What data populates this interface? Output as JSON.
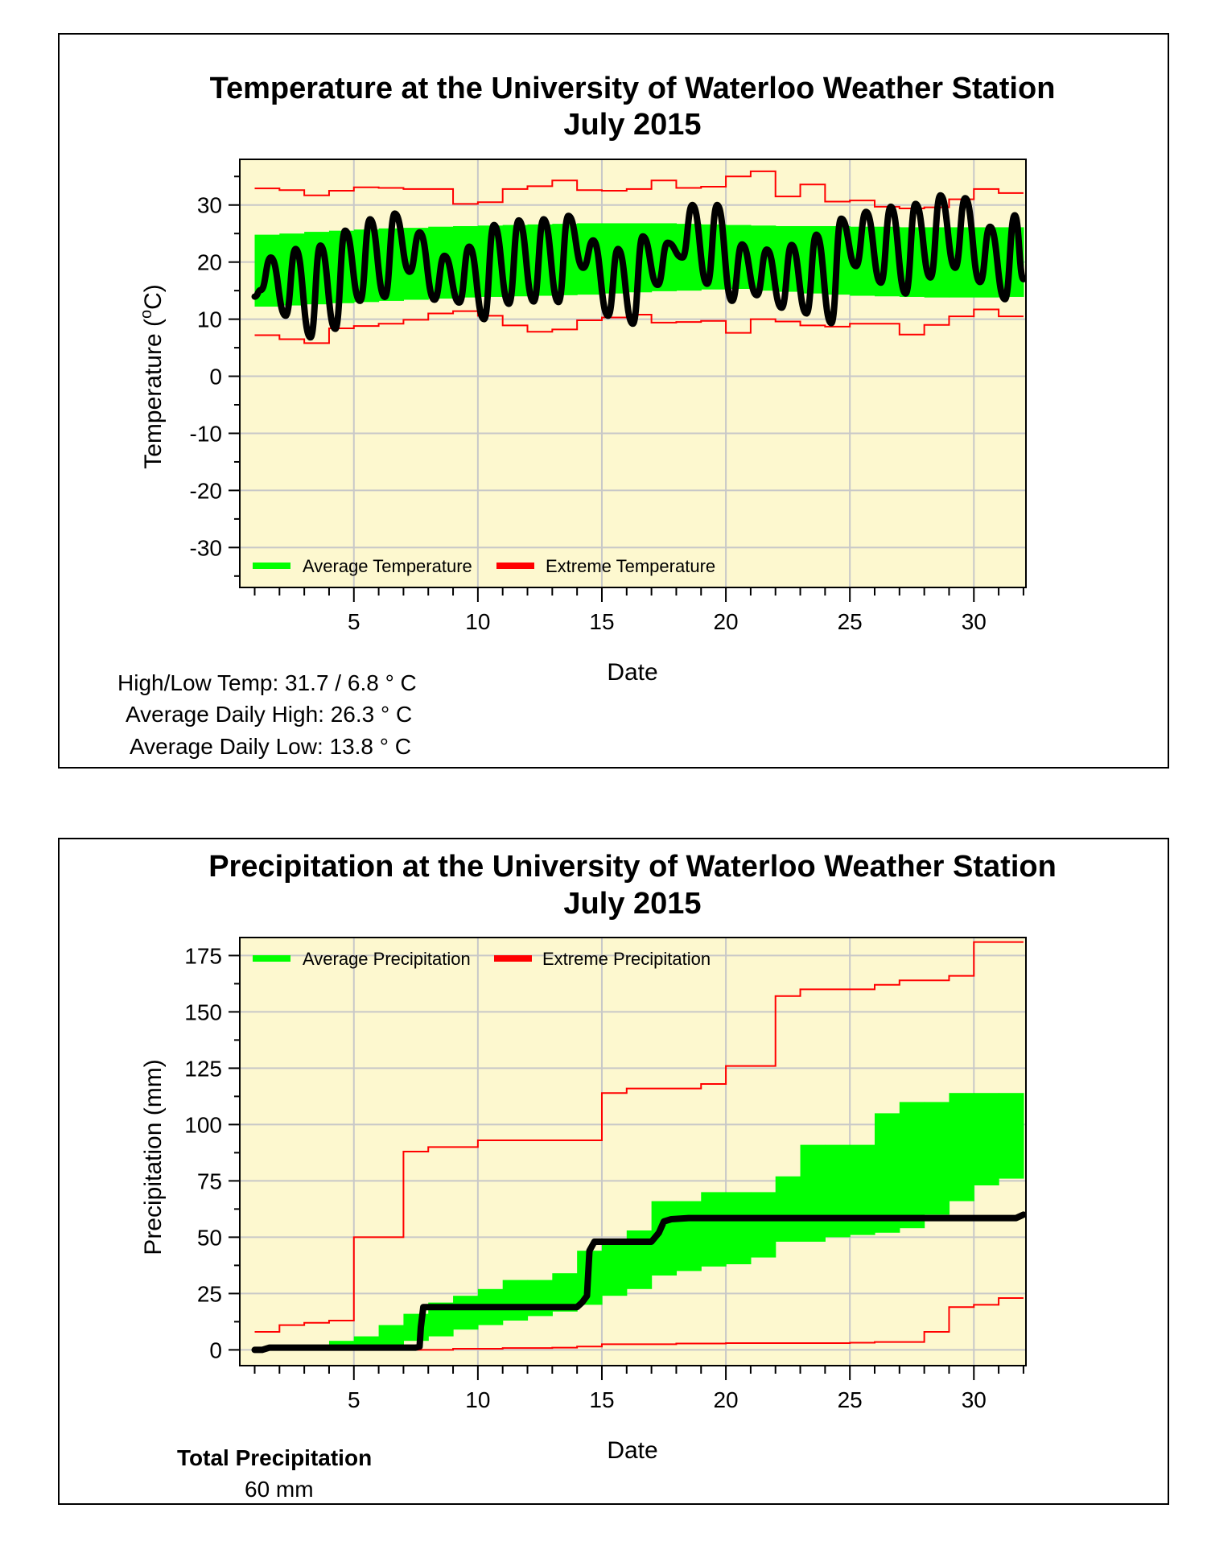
{
  "temperature_panel": {
    "stats": {
      "high_low": "High/Low Temp:  31.7 / 6.8 ° C",
      "avg_high": "Average Daily High:  26.3 ° C",
      "avg_low": "Average Daily Low:  13.8 ° C"
    }
  },
  "precipitation_panel": {
    "total_label": "Total Precipitation",
    "total_value": "60 mm"
  },
  "colors": {
    "plot_bg": "#fdf8cf",
    "average_band": "#00ff00",
    "extreme": "#ff0000",
    "observed": "#000000",
    "grid": "#c8c8c8"
  },
  "chart_data": [
    {
      "type": "area",
      "title": "Temperature at the University of Waterloo Weather Station",
      "subtitle": "July 2015",
      "xlabel": "Date",
      "ylabel_main": "Temperature (",
      "ylabel_sup": "o",
      "ylabel_end": "C)",
      "xlim": [
        0.4,
        32.1
      ],
      "ylim": [
        -37,
        38
      ],
      "xticks": [
        5,
        10,
        15,
        20,
        25,
        30
      ],
      "yticks": [
        30,
        20,
        10,
        0,
        -10,
        -20,
        -30
      ],
      "legend": [
        "Average Temperature",
        "Extreme Temperature"
      ],
      "average_band": {
        "days": [
          1,
          2,
          3,
          4,
          5,
          6,
          7,
          8,
          9,
          10,
          11,
          12,
          13,
          14,
          15,
          16,
          17,
          18,
          19,
          20,
          21,
          22,
          23,
          24,
          25,
          26,
          27,
          28,
          29,
          30,
          31,
          32
        ],
        "high": [
          24.8,
          25.0,
          25.3,
          25.5,
          25.7,
          25.9,
          26.0,
          26.2,
          26.3,
          26.4,
          26.5,
          26.6,
          26.7,
          26.8,
          26.8,
          26.8,
          26.8,
          26.7,
          26.6,
          26.5,
          26.4,
          26.3,
          26.3,
          26.3,
          26.2,
          26.2,
          26.1,
          26.1,
          26.1,
          26.1,
          26.1,
          26.1
        ],
        "low": [
          12.2,
          12.4,
          12.6,
          12.8,
          13.0,
          13.2,
          13.4,
          13.6,
          13.8,
          13.9,
          14.0,
          14.1,
          14.2,
          14.3,
          14.5,
          14.7,
          14.9,
          15.0,
          15.2,
          15.3,
          15.0,
          14.8,
          14.5,
          14.3,
          14.1,
          14.0,
          13.9,
          13.8,
          13.8,
          13.8,
          13.9,
          14.0
        ]
      },
      "extreme_high": {
        "days": [
          1,
          2,
          3,
          4,
          5,
          6,
          7,
          8,
          9,
          10,
          11,
          12,
          13,
          14,
          15,
          16,
          17,
          18,
          19,
          20,
          21,
          22,
          23,
          24,
          25,
          26,
          27,
          28,
          29,
          30,
          31,
          32
        ],
        "values": [
          32.9,
          32.6,
          31.7,
          32.5,
          33.1,
          33.0,
          32.8,
          32.8,
          30.2,
          30.5,
          32.8,
          33.3,
          34.3,
          32.6,
          32.5,
          32.8,
          34.3,
          33.0,
          33.2,
          35.0,
          35.9,
          31.5,
          33.6,
          30.6,
          30.8,
          29.7,
          29.4,
          29.6,
          31.0,
          32.8,
          32.1,
          32.1
        ]
      },
      "extreme_low": {
        "days": [
          1,
          2,
          3,
          4,
          5,
          6,
          7,
          8,
          9,
          10,
          11,
          12,
          13,
          14,
          15,
          16,
          17,
          18,
          19,
          20,
          21,
          22,
          23,
          24,
          25,
          26,
          27,
          28,
          29,
          30,
          31,
          32
        ],
        "values": [
          7.2,
          6.5,
          5.8,
          8.4,
          8.8,
          9.2,
          9.9,
          11.0,
          11.4,
          10.6,
          8.9,
          7.8,
          8.2,
          9.8,
          10.3,
          10.8,
          9.4,
          9.5,
          9.7,
          7.6,
          10.0,
          9.6,
          8.9,
          8.7,
          9.2,
          9.2,
          7.3,
          9.0,
          10.5,
          11.7,
          10.5,
          10.5
        ]
      },
      "observed_daily_range": {
        "days": [
          1,
          2,
          3,
          4,
          5,
          6,
          7,
          8,
          9,
          10,
          11,
          12,
          13,
          14,
          15,
          16,
          17,
          18,
          19,
          20,
          21,
          22,
          23,
          24,
          25,
          26,
          27,
          28,
          29,
          30,
          31
        ],
        "max": [
          20.8,
          22.3,
          22.9,
          25.5,
          27.5,
          28.5,
          25.2,
          21.1,
          22.7,
          26.5,
          27.3,
          27.5,
          28.1,
          23.8,
          22.3,
          24.5,
          23.4,
          30.0,
          30.0,
          23.1,
          22.2,
          23.0,
          24.8,
          27.6,
          28.8,
          29.7,
          30.2,
          31.7,
          31.2,
          26.2,
          28.2
        ],
        "min": [
          15.1,
          10.6,
          6.8,
          8.3,
          13.2,
          13.9,
          18.3,
          13.4,
          12.9,
          10.0,
          12.7,
          13.1,
          13.0,
          19.0,
          10.6,
          9.2,
          16.0,
          20.8,
          16.2,
          13.2,
          14.2,
          12.0,
          11.0,
          9.3,
          19.3,
          16.4,
          14.5,
          17.3,
          19.0,
          16.5,
          13.5
        ]
      }
    },
    {
      "type": "area",
      "title": "Precipitation at the University of Waterloo Weather Station",
      "subtitle": "July 2015",
      "xlabel": "Date",
      "ylabel": "Precipitation (mm)",
      "xlim": [
        0.4,
        32.1
      ],
      "ylim": [
        -7,
        183
      ],
      "xticks": [
        5,
        10,
        15,
        20,
        25,
        30
      ],
      "yticks": [
        175,
        150,
        125,
        100,
        75,
        50,
        25,
        0
      ],
      "legend": [
        "Average Precipitation",
        "Extreme Precipitation"
      ],
      "average_band": {
        "days": [
          1,
          2,
          3,
          4,
          5,
          6,
          7,
          8,
          9,
          10,
          11,
          12,
          13,
          14,
          15,
          16,
          17,
          18,
          19,
          20,
          21,
          22,
          23,
          24,
          25,
          26,
          27,
          28,
          29,
          30,
          31,
          32
        ],
        "high": [
          0.3,
          1.0,
          2.0,
          4.0,
          6.0,
          11.0,
          16.0,
          21.0,
          24.0,
          27.0,
          31.0,
          31.0,
          34.0,
          44.0,
          48.0,
          53.0,
          66.0,
          66.0,
          70.0,
          70.0,
          70.0,
          77.0,
          91.0,
          91.0,
          91.0,
          105.0,
          110.0,
          110.0,
          114.0,
          114.0,
          114.0,
          114.0
        ],
        "low": [
          0.0,
          0.0,
          0.0,
          0.0,
          1.0,
          2.0,
          4.0,
          6.0,
          9.0,
          11.0,
          13.0,
          15.0,
          17.0,
          20.0,
          24.0,
          27.0,
          33.0,
          35.0,
          37.0,
          38.0,
          41.0,
          48.0,
          48.0,
          50.0,
          51.0,
          52.0,
          54.0,
          60.0,
          66.0,
          73.0,
          76.0,
          76.0
        ]
      },
      "extreme_high": {
        "days": [
          1,
          2,
          3,
          4,
          5,
          6,
          7,
          8,
          9,
          10,
          11,
          12,
          13,
          14,
          15,
          16,
          17,
          18,
          19,
          20,
          21,
          22,
          23,
          24,
          25,
          26,
          27,
          28,
          29,
          30,
          31,
          32
        ],
        "values": [
          8.0,
          11.0,
          12.0,
          13.0,
          50.0,
          50.0,
          88.0,
          90.0,
          90.0,
          93.0,
          93.0,
          93.0,
          93.0,
          93.0,
          114.0,
          116.0,
          116.0,
          116.0,
          118.0,
          126.0,
          126.0,
          157.0,
          160.0,
          160.0,
          160.0,
          162.0,
          164.0,
          164.0,
          166.0,
          181.0,
          181.0,
          181.0
        ]
      },
      "extreme_low": {
        "days": [
          1,
          2,
          3,
          4,
          5,
          6,
          7,
          8,
          9,
          10,
          11,
          12,
          13,
          14,
          15,
          16,
          17,
          18,
          19,
          20,
          21,
          22,
          23,
          24,
          25,
          26,
          27,
          28,
          29,
          30,
          31,
          32
        ],
        "values": [
          0.0,
          0.0,
          0.0,
          0.0,
          0.0,
          0.0,
          0.0,
          0.0,
          0.5,
          0.5,
          0.8,
          0.8,
          1.0,
          1.5,
          2.5,
          2.5,
          2.5,
          2.8,
          2.8,
          3.0,
          3.0,
          3.0,
          3.0,
          3.0,
          3.2,
          3.5,
          3.5,
          8.0,
          19.0,
          20.0,
          23.0,
          23.0
        ]
      },
      "observed_cumulative": {
        "days": [
          1,
          1.3,
          1.6,
          2,
          5,
          7,
          7.5,
          7.65,
          7.7,
          7.8,
          8,
          10,
          14,
          14.2,
          14.4,
          14.5,
          14.7,
          17,
          17.3,
          17.5,
          17.8,
          18.5,
          25,
          30,
          31.7,
          32
        ],
        "values": [
          0,
          0,
          1,
          1,
          1,
          1,
          1,
          1.5,
          10,
          19,
          19,
          19,
          19,
          21,
          24,
          44,
          48,
          48,
          52,
          57,
          58,
          58.5,
          58.5,
          58.5,
          58.5,
          60
        ]
      }
    }
  ]
}
